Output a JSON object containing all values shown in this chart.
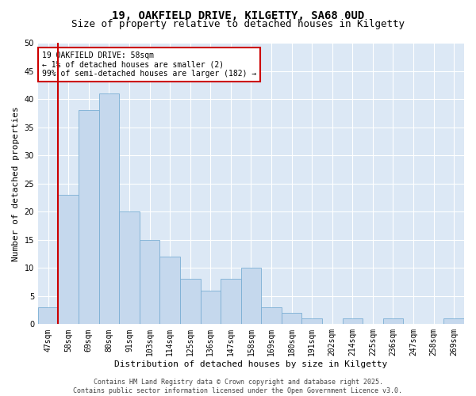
{
  "title_line1": "19, OAKFIELD DRIVE, KILGETTY, SA68 0UD",
  "title_line2": "Size of property relative to detached houses in Kilgetty",
  "xlabel": "Distribution of detached houses by size in Kilgetty",
  "ylabel": "Number of detached properties",
  "categories": [
    "47sqm",
    "58sqm",
    "69sqm",
    "80sqm",
    "91sqm",
    "103sqm",
    "114sqm",
    "125sqm",
    "136sqm",
    "147sqm",
    "158sqm",
    "169sqm",
    "180sqm",
    "191sqm",
    "202sqm",
    "214sqm",
    "225sqm",
    "236sqm",
    "247sqm",
    "258sqm",
    "269sqm"
  ],
  "values": [
    3,
    23,
    38,
    41,
    20,
    15,
    12,
    8,
    6,
    8,
    10,
    3,
    2,
    1,
    0,
    1,
    0,
    1,
    0,
    0,
    1
  ],
  "bar_color": "#c5d8ed",
  "bar_edge_color": "#7bafd4",
  "highlight_index": 1,
  "highlight_line_color": "#cc0000",
  "ylim": [
    0,
    50
  ],
  "yticks": [
    0,
    5,
    10,
    15,
    20,
    25,
    30,
    35,
    40,
    45,
    50
  ],
  "annotation_text": "19 OAKFIELD DRIVE: 58sqm\n← 1% of detached houses are smaller (2)\n99% of semi-detached houses are larger (182) →",
  "annotation_box_color": "#ffffff",
  "annotation_box_edge_color": "#cc0000",
  "footer_line1": "Contains HM Land Registry data © Crown copyright and database right 2025.",
  "footer_line2": "Contains public sector information licensed under the Open Government Licence v3.0.",
  "bg_color": "#ffffff",
  "plot_bg_color": "#dce8f5",
  "grid_color": "#ffffff",
  "title_fontsize": 10,
  "subtitle_fontsize": 9,
  "axis_label_fontsize": 8,
  "tick_fontsize": 7,
  "annotation_fontsize": 7,
  "footer_fontsize": 6
}
